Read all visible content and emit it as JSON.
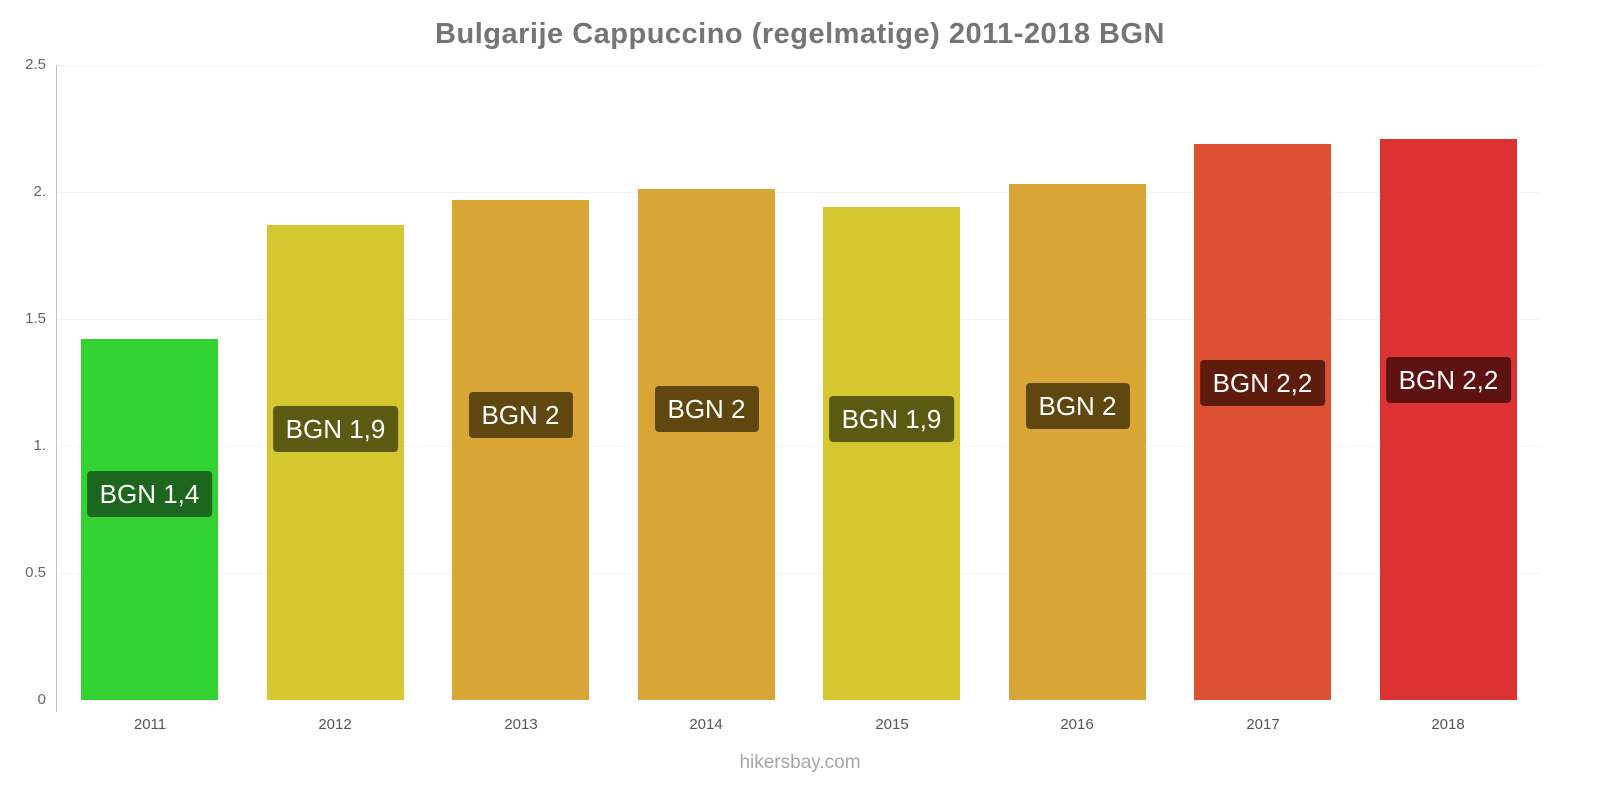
{
  "title": "Bulgarije Cappuccino (regelmatige) 2011-2018 BGN",
  "footer": "hikersbay.com",
  "chart_data": {
    "type": "bar",
    "title": "Bulgarije Cappuccino (regelmatige) 2011-2018 BGN",
    "xlabel": "",
    "ylabel": "",
    "categories": [
      "2011",
      "2012",
      "2013",
      "2014",
      "2015",
      "2016",
      "2017",
      "2018"
    ],
    "values": [
      1.42,
      1.87,
      1.97,
      2.01,
      1.94,
      2.03,
      2.19,
      2.21
    ],
    "bar_value_labels": [
      "BGN 1,4",
      "BGN 1,9",
      "BGN 2",
      "BGN 2",
      "BGN 1,9",
      "BGN 2",
      "BGN 2,2",
      "BGN 2,2"
    ],
    "bar_colors": [
      "#33d233",
      "#d6c62f",
      "#d9a534",
      "#d9a534",
      "#d6c62f",
      "#d9a534",
      "#dd5033",
      "#dc3232"
    ],
    "bar_label_bg_colors": [
      "#1d661d",
      "#5c5a12",
      "#5f470f",
      "#5f470f",
      "#5c5a12",
      "#5f470f",
      "#5e1d0c",
      "#5e1111"
    ],
    "ylim": [
      0,
      2.5
    ],
    "yticks": [
      0,
      0.5,
      1,
      1.5,
      2,
      2.5
    ],
    "ytick_labels": [
      "0",
      "0.5",
      "1.",
      "1.5",
      "2.",
      "2.5"
    ],
    "grid": true,
    "legend": false,
    "currency": "BGN",
    "source": "hikersbay.com"
  }
}
